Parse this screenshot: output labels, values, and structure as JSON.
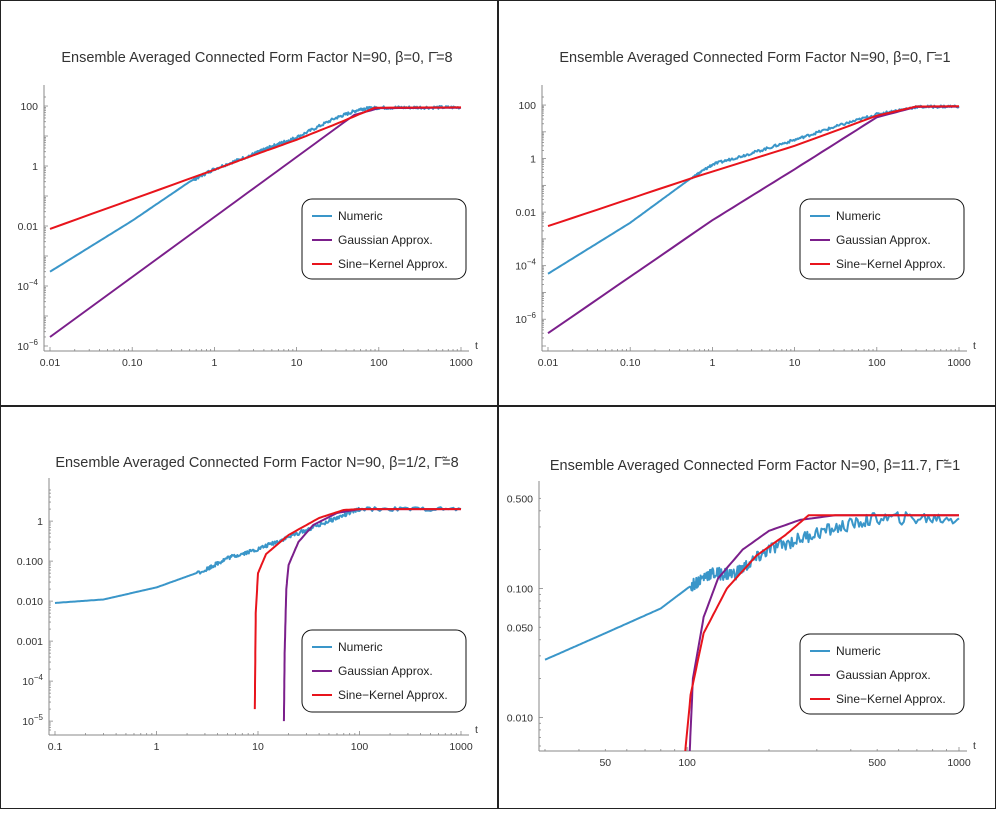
{
  "colors": {
    "numeric": "#3a96c9",
    "gaussian": "#7b1f8b",
    "sine": "#e8141c"
  },
  "legend": [
    "Numeric",
    "Gaussian Approx.",
    "Sine−Kernel Approx."
  ],
  "chart_data": [
    {
      "type": "line",
      "title": "Ensemble Averaged Connected Form Factor N=90, β=0, Γ̄=8",
      "xlabel": "t",
      "ylabel": "",
      "xscale": "log",
      "yscale": "log",
      "xlim": [
        0.01,
        1000
      ],
      "ylim": [
        1e-06,
        200
      ],
      "xticks": [
        {
          "v": 0.01,
          "l": "0.01"
        },
        {
          "v": 0.1,
          "l": "0.10"
        },
        {
          "v": 1,
          "l": "1"
        },
        {
          "v": 10,
          "l": "10"
        },
        {
          "v": 100,
          "l": "100"
        },
        {
          "v": 1000,
          "l": "1000"
        }
      ],
      "yticks": [
        {
          "v": 1e-06,
          "l": "10",
          "e": "−6"
        },
        {
          "v": 0.0001,
          "l": "10",
          "e": "−4"
        },
        {
          "v": 0.01,
          "l": "0.01"
        },
        {
          "v": 1,
          "l": "1"
        },
        {
          "v": 100,
          "l": "100"
        }
      ],
      "series": [
        {
          "name": "Numeric",
          "color": "numeric",
          "x": [
            0.01,
            0.1,
            0.5,
            1,
            3,
            5,
            10,
            30,
            60,
            100,
            300,
            1000
          ],
          "y": [
            0.0003,
            0.015,
            0.3,
            0.8,
            2.5,
            4.5,
            9,
            40,
            80,
            88,
            90,
            90
          ],
          "noise": true
        },
        {
          "name": "Gaussian Approx.",
          "color": "gaussian",
          "x": [
            0.01,
            1,
            10,
            50,
            100,
            1000
          ],
          "y": [
            2e-06,
            0.02,
            2,
            50,
            85,
            88
          ]
        },
        {
          "name": "Sine−Kernel Approx.",
          "color": "sine",
          "x": [
            0.01,
            1,
            3,
            10,
            30,
            90,
            1000
          ],
          "y": [
            0.008,
            0.75,
            2.3,
            7.5,
            25,
            88,
            90
          ]
        }
      ]
    },
    {
      "type": "line",
      "title": "Ensemble Averaged Connected Form Factor N=90, β=0, Γ̄=1",
      "xlabel": "t",
      "ylabel": "",
      "xscale": "log",
      "yscale": "log",
      "xlim": [
        0.01,
        1000
      ],
      "ylim": [
        1e-07,
        200
      ],
      "xticks": [
        {
          "v": 0.01,
          "l": "0.01"
        },
        {
          "v": 0.1,
          "l": "0.10"
        },
        {
          "v": 1,
          "l": "1"
        },
        {
          "v": 10,
          "l": "10"
        },
        {
          "v": 100,
          "l": "100"
        },
        {
          "v": 1000,
          "l": "1000"
        }
      ],
      "yticks": [
        {
          "v": 1e-06,
          "l": "10",
          "e": "−6"
        },
        {
          "v": 0.0001,
          "l": "10",
          "e": "−4"
        },
        {
          "v": 0.01,
          "l": "0.01"
        },
        {
          "v": 1,
          "l": "1"
        },
        {
          "v": 100,
          "l": "100"
        }
      ],
      "series": [
        {
          "name": "Numeric",
          "color": "numeric",
          "x": [
            0.01,
            0.1,
            0.5,
            1,
            3,
            10,
            30,
            100,
            300,
            1000
          ],
          "y": [
            5e-05,
            0.004,
            0.15,
            0.6,
            1.6,
            5,
            15,
            45,
            85,
            90
          ],
          "noise": true
        },
        {
          "name": "Gaussian Approx.",
          "color": "gaussian",
          "x": [
            0.01,
            1,
            10,
            100,
            300,
            1000
          ],
          "y": [
            3e-07,
            0.005,
            0.4,
            35,
            85,
            88
          ]
        },
        {
          "name": "Sine−Kernel Approx.",
          "color": "sine",
          "x": [
            0.01,
            0.6,
            10,
            100,
            300,
            1000
          ],
          "y": [
            0.003,
            0.2,
            3,
            40,
            88,
            90
          ]
        }
      ]
    },
    {
      "type": "line",
      "title": "Ensemble Averaged Connected Form Factor N=90, β=1/2, Γ̃=8",
      "xlabel": "t",
      "ylabel": "",
      "xscale": "log",
      "yscale": "log",
      "xlim": [
        0.1,
        1000
      ],
      "ylim": [
        6e-06,
        6
      ],
      "xticks": [
        {
          "v": 0.1,
          "l": "0.1"
        },
        {
          "v": 1,
          "l": "1"
        },
        {
          "v": 10,
          "l": "10"
        },
        {
          "v": 100,
          "l": "100"
        },
        {
          "v": 1000,
          "l": "1000"
        }
      ],
      "yticks": [
        {
          "v": 1e-05,
          "l": "10",
          "e": "−5"
        },
        {
          "v": 0.0001,
          "l": "10",
          "e": "−4"
        },
        {
          "v": 0.001,
          "l": "0.001"
        },
        {
          "v": 0.01,
          "l": "0.010"
        },
        {
          "v": 0.1,
          "l": "0.100"
        },
        {
          "v": 1,
          "l": "1"
        }
      ],
      "series": [
        {
          "name": "Numeric",
          "color": "numeric",
          "x": [
            0.1,
            0.3,
            1,
            3,
            5,
            10,
            20,
            50,
            100,
            1000
          ],
          "y": [
            0.009,
            0.011,
            0.022,
            0.06,
            0.12,
            0.2,
            0.4,
            1.0,
            2.0,
            2.0
          ],
          "noise": true
        },
        {
          "name": "Gaussian Approx.",
          "color": "gaussian",
          "x": [
            18,
            18.3,
            19,
            20,
            25,
            35,
            60,
            100,
            1000
          ],
          "y": [
            1e-05,
            0.0005,
            0.02,
            0.08,
            0.3,
            0.8,
            1.6,
            2.0,
            2.0
          ]
        },
        {
          "name": "Sine−Kernel Approx.",
          "color": "sine",
          "x": [
            9.3,
            9.5,
            10,
            12,
            20,
            40,
            70,
            100,
            1000
          ],
          "y": [
            2e-05,
            0.005,
            0.05,
            0.15,
            0.45,
            1.2,
            1.9,
            2.0,
            2.0
          ]
        }
      ]
    },
    {
      "type": "line",
      "title": "Ensemble Averaged Connected Form Factor N=90, β=11.7, Γ̃=1",
      "xlabel": "t",
      "ylabel": "",
      "xscale": "log",
      "yscale": "log",
      "xlim": [
        30,
        1000
      ],
      "ylim": [
        0.006,
        0.55
      ],
      "xticks": [
        {
          "v": 50,
          "l": "50"
        },
        {
          "v": 100,
          "l": "100"
        },
        {
          "v": 500,
          "l": "500"
        },
        {
          "v": 1000,
          "l": "1000"
        }
      ],
      "yticks": [
        {
          "v": 0.01,
          "l": "0.010"
        },
        {
          "v": 0.05,
          "l": "0.050"
        },
        {
          "v": 0.1,
          "l": "0.100"
        },
        {
          "v": 0.5,
          "l": "0.500"
        }
      ],
      "series": [
        {
          "name": "Numeric",
          "color": "numeric",
          "x": [
            30,
            50,
            80,
            100,
            120,
            150,
            200,
            300,
            500,
            1000
          ],
          "y": [
            0.028,
            0.045,
            0.07,
            0.1,
            0.13,
            0.13,
            0.2,
            0.27,
            0.35,
            0.35
          ],
          "noise": true
        },
        {
          "name": "Gaussian Approx.",
          "color": "gaussian",
          "x": [
            102,
            105,
            115,
            130,
            160,
            200,
            260,
            350,
            1000
          ],
          "y": [
            0.005,
            0.02,
            0.06,
            0.12,
            0.2,
            0.28,
            0.34,
            0.37,
            0.37
          ]
        },
        {
          "name": "Sine−Kernel Approx.",
          "color": "sine",
          "x": [
            98,
            103,
            115,
            140,
            180,
            230,
            280,
            1000
          ],
          "y": [
            0.005,
            0.015,
            0.045,
            0.1,
            0.18,
            0.26,
            0.37,
            0.37
          ]
        }
      ]
    }
  ]
}
